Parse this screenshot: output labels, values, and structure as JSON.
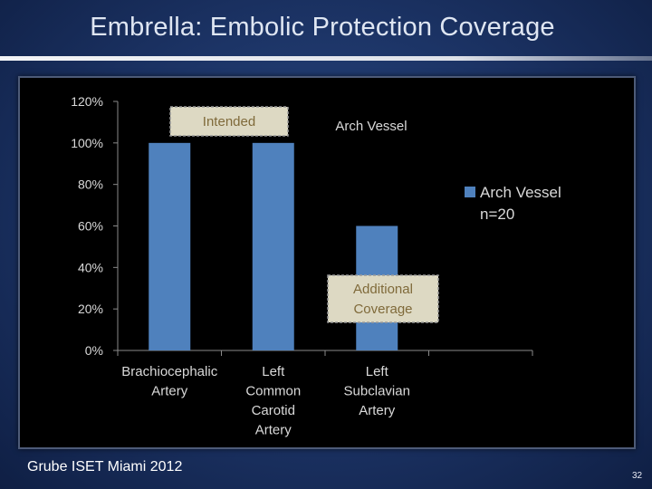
{
  "slide": {
    "title": "Embrella: Embolic Protection Coverage",
    "source": "Grube ISET Miami 2012",
    "page_number": "32"
  },
  "colors": {
    "bar": "#4f81bd",
    "annotation_fill": "#ddd9c3",
    "annotation_text": "#7f6a3a",
    "chart_text": "#d9d9d9"
  },
  "chart_data": {
    "type": "bar",
    "title": "Arch Vessel",
    "categories": [
      [
        "Brachiocephalic",
        "Artery"
      ],
      [
        "Left",
        "Common",
        "Carotid",
        "Artery"
      ],
      [
        "Left",
        "Subclavian",
        "Artery"
      ]
    ],
    "series": [
      {
        "name": "Arch Vessel",
        "values": [
          100,
          100,
          60
        ]
      }
    ],
    "ylim": [
      0,
      120
    ],
    "yticks": [
      "0%",
      "20%",
      "40%",
      "60%",
      "80%",
      "100%",
      "120%"
    ],
    "legend": {
      "label_line1": "Arch Vessel",
      "label_line2": "n=20",
      "position": "right"
    },
    "annotations": [
      {
        "label_lines": [
          "Intended"
        ],
        "near_category": 0
      },
      {
        "label_lines": [
          "Additional",
          "Coverage"
        ],
        "near_category": 2
      }
    ]
  }
}
